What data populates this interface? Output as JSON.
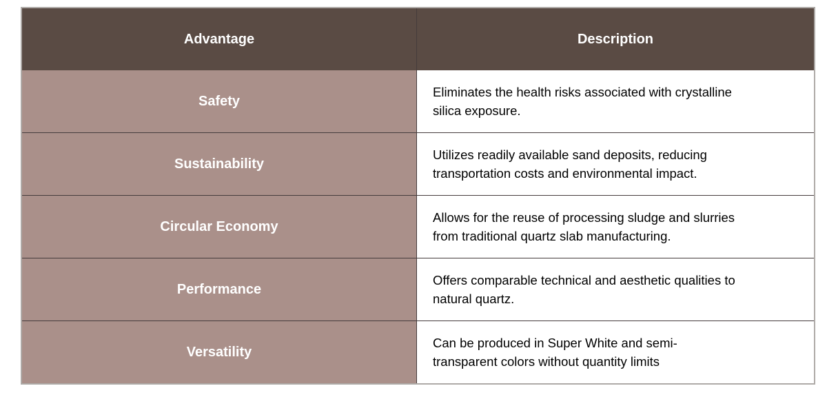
{
  "table": {
    "columns": [
      {
        "label": "Advantage"
      },
      {
        "label": "Description"
      }
    ],
    "rows": [
      {
        "advantage": "Safety",
        "description": "Eliminates the health risks associated with crystalline\nsilica exposure."
      },
      {
        "advantage": "Sustainability",
        "description": "Utilizes readily available sand deposits, reducing\ntransportation costs and environmental impact."
      },
      {
        "advantage": "Circular Economy",
        "description": "Allows for the reuse of processing sludge and slurries\nfrom traditional quartz slab manufacturing."
      },
      {
        "advantage": "Performance",
        "description": "Offers comparable technical and aesthetic qualities to\nnatural quartz."
      },
      {
        "advantage": "Versatility",
        "description": "Can be produced in Super White and semi-\ntransparent colors without quantity limits"
      }
    ]
  },
  "colors": {
    "header_bg": "#5a4b44",
    "advantage_bg": "#aa908a",
    "description_bg": "#ffffff",
    "header_text": "#ffffff",
    "advantage_text": "#ffffff",
    "description_text": "#000000",
    "inner_border": "#453b3c",
    "outer_border": "#aeaaa7",
    "page_bg": "#ffffff"
  }
}
